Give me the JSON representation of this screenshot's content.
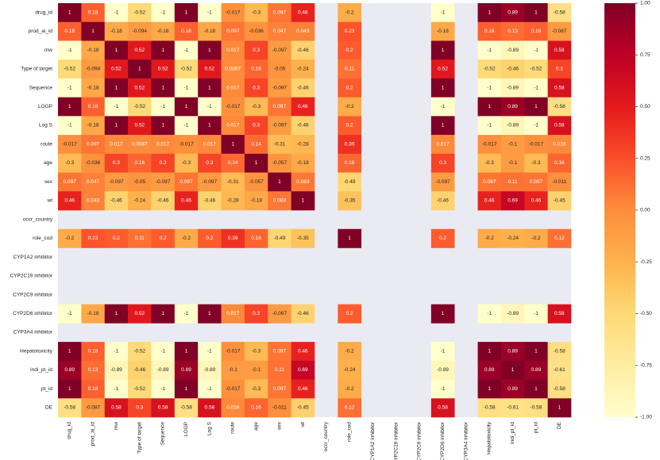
{
  "chart_data": {
    "type": "heatmap",
    "title": "",
    "xlabel": "",
    "ylabel": "",
    "colormap": "YlOrRd",
    "vmin": -1.0,
    "vmax": 1.0,
    "missing_color": "#eaeaf2",
    "labels": [
      "drug_id",
      "prod_ai_id",
      "mw",
      "Type of target",
      "Sequence",
      "LOGP",
      "Log S",
      "route",
      "age",
      "sex",
      "wt",
      "occr_country",
      "role_cod",
      "CYP1A2 inhibitor",
      "CYP2C19 inhibitor",
      "CYP2C9 inhibitor",
      "CYP2D6 inhibitor",
      "CYP3A4 inhibitor",
      "Hepatotoxicity",
      "indi_pt_id",
      "pt_id",
      "DE"
    ],
    "matrix": [
      [
        "1",
        "0.18",
        "-1",
        "-0.52",
        "-1",
        "1",
        "-1",
        "-0.017",
        "-0.3",
        "0.097",
        "0.46",
        null,
        "-0.2",
        null,
        null,
        null,
        "-1",
        null,
        "1",
        "0.89",
        "1",
        "-0.58"
      ],
      [
        "0.18",
        "1",
        "-0.18",
        "-0.094",
        "-0.18",
        "0.18",
        "-0.18",
        "0.097",
        "-0.036",
        "0.047",
        "0.043",
        null,
        "0.23",
        null,
        null,
        null,
        "-0.18",
        null,
        "0.18",
        "0.13",
        "0.18",
        "-0.087"
      ],
      [
        "-1",
        "-0.18",
        "1",
        "0.52",
        "1",
        "-1",
        "1",
        "0.017",
        "0.3",
        "-0.097",
        "-0.46",
        null,
        "0.2",
        null,
        null,
        null,
        "1",
        null,
        "-1",
        "-0.89",
        "-1",
        "0.58"
      ],
      [
        "-0.52",
        "-0.094",
        "0.52",
        "1",
        "0.52",
        "-0.52",
        "0.52",
        "0.0087",
        "0.16",
        "-0.05",
        "-0.24",
        null,
        "0.11",
        null,
        null,
        null,
        "0.52",
        null,
        "-0.52",
        "-0.46",
        "-0.52",
        "0.3"
      ],
      [
        "-1",
        "-0.18",
        "1",
        "0.52",
        "1",
        "-1",
        "1",
        "0.017",
        "0.3",
        "-0.097",
        "-0.46",
        null,
        "0.2",
        null,
        null,
        null,
        "1",
        null,
        "-1",
        "-0.89",
        "-1",
        "0.58"
      ],
      [
        "1",
        "0.18",
        "-1",
        "-0.52",
        "-1",
        "1",
        "-1",
        "-0.017",
        "-0.3",
        "0.097",
        "0.46",
        null,
        "-0.2",
        null,
        null,
        null,
        "-1",
        null,
        "1",
        "0.89",
        "1",
        "-0.58"
      ],
      [
        "-1",
        "-0.18",
        "1",
        "0.52",
        "1",
        "-1",
        "1",
        "0.017",
        "0.3",
        "-0.097",
        "-0.46",
        null,
        "0.2",
        null,
        null,
        null,
        "1",
        null,
        "-1",
        "-0.89",
        "-1",
        "0.58"
      ],
      [
        "-0.017",
        "0.097",
        "0.017",
        "0.0087",
        "0.017",
        "-0.017",
        "0.017",
        "1",
        "0.14",
        "-0.31",
        "-0.28",
        null,
        "0.39",
        null,
        null,
        null,
        "0.017",
        null,
        "-0.017",
        "-0.1",
        "-0.017",
        "0.016"
      ],
      [
        "-0.3",
        "-0.036",
        "0.3",
        "0.16",
        "0.3",
        "-0.3",
        "0.3",
        "0.14",
        "1",
        "-0.057",
        "-0.18",
        null,
        "0.16",
        null,
        null,
        null,
        "0.3",
        null,
        "-0.3",
        "-0.1",
        "-0.3",
        "0.16"
      ],
      [
        "0.097",
        "0.047",
        "-0.097",
        "-0.05",
        "-0.097",
        "0.097",
        "-0.097",
        "-0.31",
        "-0.057",
        "1",
        "0.083",
        null,
        "-0.49",
        null,
        null,
        null,
        "-0.097",
        null,
        "0.097",
        "0.11",
        "0.097",
        "-0.011"
      ],
      [
        "0.46",
        "0.043",
        "-0.46",
        "-0.24",
        "-0.46",
        "0.46",
        "-0.46",
        "-0.28",
        "-0.18",
        "0.083",
        "1",
        null,
        "-0.35",
        null,
        null,
        null,
        "-0.46",
        null,
        "0.46",
        "0.69",
        "0.46",
        "-0.45"
      ],
      [
        null,
        null,
        null,
        null,
        null,
        null,
        null,
        null,
        null,
        null,
        null,
        null,
        null,
        null,
        null,
        null,
        null,
        null,
        null,
        null,
        null,
        null
      ],
      [
        "-0.2",
        "0.23",
        "0.2",
        "0.11",
        "0.2",
        "-0.2",
        "0.2",
        "0.39",
        "0.16",
        "-0.49",
        "-0.35",
        null,
        "1",
        null,
        null,
        null,
        "0.2",
        null,
        "-0.2",
        "-0.24",
        "-0.2",
        "0.12"
      ],
      [
        null,
        null,
        null,
        null,
        null,
        null,
        null,
        null,
        null,
        null,
        null,
        null,
        null,
        null,
        null,
        null,
        null,
        null,
        null,
        null,
        null,
        null
      ],
      [
        null,
        null,
        null,
        null,
        null,
        null,
        null,
        null,
        null,
        null,
        null,
        null,
        null,
        null,
        null,
        null,
        null,
        null,
        null,
        null,
        null,
        null
      ],
      [
        null,
        null,
        null,
        null,
        null,
        null,
        null,
        null,
        null,
        null,
        null,
        null,
        null,
        null,
        null,
        null,
        null,
        null,
        null,
        null,
        null,
        null
      ],
      [
        "-1",
        "-0.18",
        "1",
        "0.52",
        "1",
        "-1",
        "1",
        "0.017",
        "0.3",
        "-0.097",
        "-0.46",
        null,
        "0.2",
        null,
        null,
        null,
        "1",
        null,
        "-1",
        "-0.89",
        "-1",
        "0.58"
      ],
      [
        null,
        null,
        null,
        null,
        null,
        null,
        null,
        null,
        null,
        null,
        null,
        null,
        null,
        null,
        null,
        null,
        null,
        null,
        null,
        null,
        null,
        null
      ],
      [
        "1",
        "0.18",
        "-1",
        "-0.52",
        "-1",
        "1",
        "-1",
        "-0.017",
        "-0.3",
        "0.097",
        "0.46",
        null,
        "-0.2",
        null,
        null,
        null,
        "-1",
        null,
        "1",
        "0.89",
        "1",
        "-0.58"
      ],
      [
        "0.89",
        "0.13",
        "-0.89",
        "-0.46",
        "-0.89",
        "0.89",
        "-0.89",
        "-0.1",
        "-0.1",
        "0.11",
        "0.69",
        null,
        "-0.24",
        null,
        null,
        null,
        "-0.89",
        null,
        "0.89",
        "1",
        "0.89",
        "-0.61"
      ],
      [
        "1",
        "0.18",
        "-1",
        "-0.52",
        "-1",
        "1",
        "-1",
        "-0.017",
        "-0.3",
        "0.097",
        "0.46",
        null,
        "-0.2",
        null,
        null,
        null,
        "-1",
        null,
        "1",
        "0.89",
        "1",
        "-0.58"
      ],
      [
        "-0.58",
        "-0.087",
        "0.58",
        "0.3",
        "0.58",
        "-0.58",
        "0.58",
        "0.016",
        "0.16",
        "-0.011",
        "-0.45",
        null,
        "0.12",
        null,
        null,
        null,
        "0.58",
        null,
        "-0.58",
        "-0.61",
        "-0.58",
        "1"
      ]
    ],
    "colorbar": {
      "ticks": [
        "1.00",
        "0.75",
        "0.50",
        "0.25",
        "0.00",
        "-0.25",
        "-0.50",
        "-0.75",
        "-1.00"
      ],
      "range": [
        -1.0,
        1.0
      ]
    },
    "grid": false,
    "legend": "colorbar-right"
  }
}
